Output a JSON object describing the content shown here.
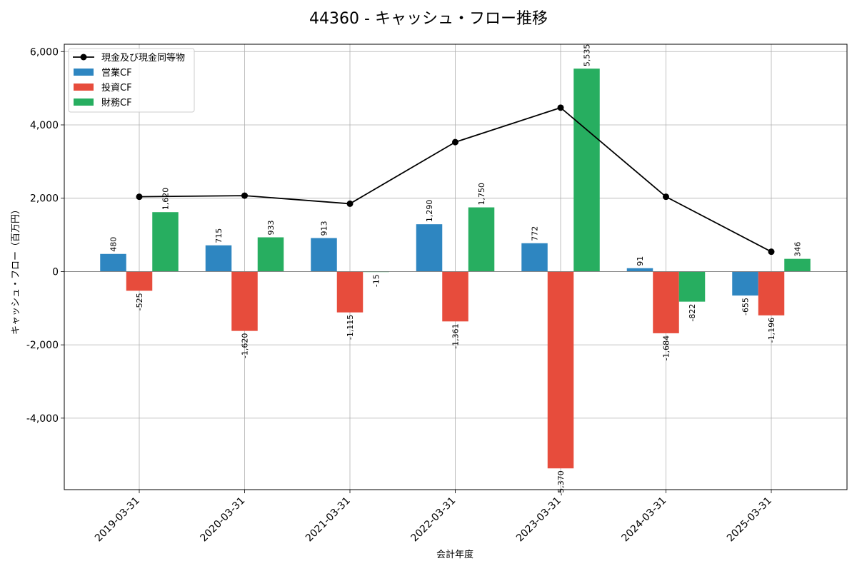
{
  "chart_data": {
    "type": "bar",
    "title": "44360 - キャッシュ・フロー推移",
    "xlabel": "会計年度",
    "ylabel": "キャッシュ・フロー（百万円）",
    "ylim": [
      -5950,
      6200
    ],
    "yticks": [
      -4000,
      -2000,
      0,
      2000,
      4000,
      6000
    ],
    "ytick_labels": [
      "-4,000",
      "-2,000",
      "0",
      "2,000",
      "4,000",
      "6,000"
    ],
    "categories": [
      "2019-03-31",
      "2020-03-31",
      "2021-03-31",
      "2022-03-31",
      "2023-03-31",
      "2024-03-31",
      "2025-03-31"
    ],
    "grid": true,
    "legend_position": "top-left",
    "series": [
      {
        "name": "営業CF",
        "kind": "bar",
        "color": "#2e86c1",
        "values": [
          480,
          715,
          913,
          1290,
          772,
          91,
          -655
        ],
        "labels": [
          "480",
          "715",
          "913",
          "1,290",
          "772",
          "91",
          "-655"
        ]
      },
      {
        "name": "投資CF",
        "kind": "bar",
        "color": "#e74c3c",
        "values": [
          -525,
          -1620,
          -1115,
          -1361,
          -5370,
          -1684,
          -1196
        ],
        "labels": [
          "-525",
          "-1,620",
          "-1,115",
          "-1,361",
          "-5,370",
          "-1,684",
          "-1,196"
        ]
      },
      {
        "name": "財務CF",
        "kind": "bar",
        "color": "#27ae60",
        "values": [
          1620,
          933,
          -15,
          1750,
          5535,
          -822,
          346
        ],
        "labels": [
          "1,620",
          "933",
          "-15",
          "1,750",
          "5,535",
          "-822",
          "346"
        ]
      },
      {
        "name": "現金及び現金同等物",
        "kind": "line",
        "color": "#000000",
        "values": [
          2040,
          2070,
          1850,
          3530,
          4470,
          2040,
          540
        ]
      }
    ]
  }
}
